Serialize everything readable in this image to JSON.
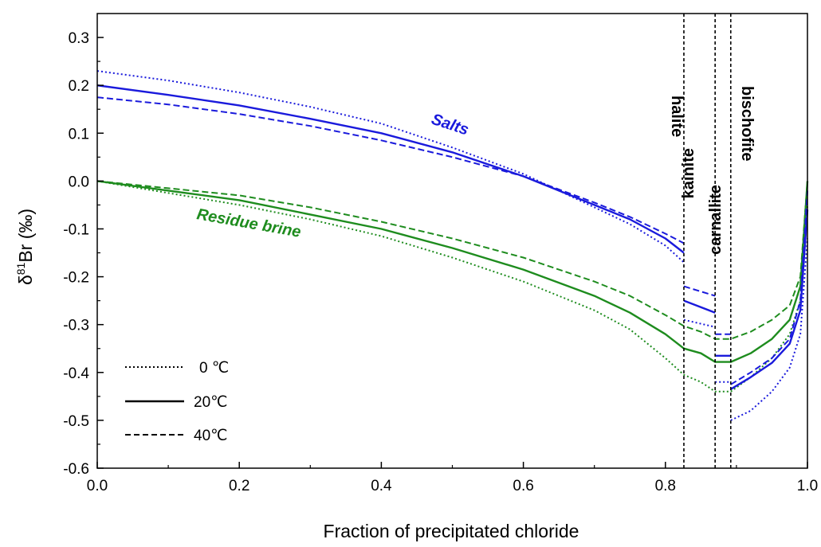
{
  "chart_data": {
    "type": "line",
    "xlabel": "Fraction of precipitated chloride",
    "ylabel": {
      "prefix": "δ",
      "superscript": "81",
      "main": "Br (‰)"
    },
    "xlim": [
      0,
      1.0
    ],
    "ylim": [
      -0.6,
      0.35
    ],
    "x_ticks": [
      0.0,
      0.2,
      0.4,
      0.6,
      0.8,
      1.0
    ],
    "x_tick_labels": [
      "0.0",
      "0.2",
      "0.4",
      "0.6",
      "0.8",
      "1.0"
    ],
    "y_ticks": [
      0.3,
      0.2,
      0.1,
      0.0,
      -0.1,
      -0.2,
      -0.3,
      -0.4,
      -0.5,
      -0.6
    ],
    "y_tick_labels": [
      "0.3",
      "0.2",
      "0.1",
      "0.0",
      "-0.1",
      "-0.2",
      "-0.3",
      "-0.4",
      "-0.5",
      "-0.6"
    ],
    "grid": false,
    "colors": {
      "salts": "#1a1adc",
      "brine": "#1e8c1e"
    },
    "annotations": {
      "salts": "Salts",
      "brine": "Residue brine"
    },
    "phase_boundaries": [
      {
        "x": 0.826,
        "label": "halite"
      },
      {
        "x": 0.87,
        "label": "kainite"
      },
      {
        "x": 0.892,
        "label": "carnallite"
      },
      {
        "x": 0.892,
        "label": "bischofite"
      }
    ],
    "legend": {
      "position": "bottom-left",
      "entries": [
        {
          "label": "0 ℃",
          "style": "dotted"
        },
        {
          "label": "20℃",
          "style": "solid"
        },
        {
          "label": "40℃",
          "style": "dashed"
        }
      ]
    },
    "series": [
      {
        "group": "brine",
        "temp": "0",
        "style": "dotted",
        "segments": [
          [
            [
              0,
              0
            ],
            [
              0.1,
              -0.025
            ],
            [
              0.2,
              -0.05
            ],
            [
              0.3,
              -0.08
            ],
            [
              0.4,
              -0.115
            ],
            [
              0.5,
              -0.16
            ],
            [
              0.6,
              -0.21
            ],
            [
              0.7,
              -0.27
            ],
            [
              0.75,
              -0.31
            ],
            [
              0.8,
              -0.37
            ],
            [
              0.826,
              -0.405
            ],
            [
              0.85,
              -0.42
            ],
            [
              0.87,
              -0.44
            ],
            [
              0.892,
              -0.44
            ],
            [
              0.92,
              -0.41
            ],
            [
              0.95,
              -0.37
            ],
            [
              0.975,
              -0.32
            ],
            [
              0.99,
              -0.25
            ],
            [
              1.0,
              -0.05
            ]
          ]
        ]
      },
      {
        "group": "brine",
        "temp": "20",
        "style": "solid",
        "segments": [
          [
            [
              0,
              0
            ],
            [
              0.1,
              -0.02
            ],
            [
              0.2,
              -0.04
            ],
            [
              0.3,
              -0.07
            ],
            [
              0.4,
              -0.1
            ],
            [
              0.5,
              -0.14
            ],
            [
              0.6,
              -0.185
            ],
            [
              0.7,
              -0.24
            ],
            [
              0.75,
              -0.275
            ],
            [
              0.8,
              -0.32
            ],
            [
              0.826,
              -0.35
            ],
            [
              0.85,
              -0.36
            ],
            [
              0.87,
              -0.378
            ],
            [
              0.892,
              -0.378
            ],
            [
              0.92,
              -0.36
            ],
            [
              0.95,
              -0.33
            ],
            [
              0.975,
              -0.29
            ],
            [
              0.99,
              -0.22
            ],
            [
              1.0,
              0.0
            ]
          ]
        ]
      },
      {
        "group": "brine",
        "temp": "40",
        "style": "dashed",
        "segments": [
          [
            [
              0,
              0
            ],
            [
              0.1,
              -0.015
            ],
            [
              0.2,
              -0.03
            ],
            [
              0.3,
              -0.055
            ],
            [
              0.4,
              -0.085
            ],
            [
              0.5,
              -0.12
            ],
            [
              0.6,
              -0.16
            ],
            [
              0.7,
              -0.21
            ],
            [
              0.75,
              -0.24
            ],
            [
              0.8,
              -0.28
            ],
            [
              0.826,
              -0.303
            ],
            [
              0.85,
              -0.315
            ],
            [
              0.87,
              -0.33
            ],
            [
              0.892,
              -0.33
            ],
            [
              0.92,
              -0.315
            ],
            [
              0.95,
              -0.29
            ],
            [
              0.975,
              -0.26
            ],
            [
              0.99,
              -0.2
            ],
            [
              1.0,
              0.0
            ]
          ]
        ]
      },
      {
        "group": "salts",
        "temp": "0",
        "style": "dotted",
        "segments": [
          [
            [
              0,
              0.23
            ],
            [
              0.1,
              0.21
            ],
            [
              0.2,
              0.185
            ],
            [
              0.3,
              0.155
            ],
            [
              0.4,
              0.12
            ],
            [
              0.5,
              0.07
            ],
            [
              0.6,
              0.015
            ],
            [
              0.7,
              -0.055
            ],
            [
              0.75,
              -0.09
            ],
            [
              0.8,
              -0.135
            ],
            [
              0.826,
              -0.17
            ]
          ],
          [
            [
              0.826,
              -0.29
            ],
            [
              0.87,
              -0.305
            ]
          ],
          [
            [
              0.892,
              -0.5
            ],
            [
              0.92,
              -0.48
            ],
            [
              0.95,
              -0.44
            ],
            [
              0.975,
              -0.39
            ],
            [
              0.99,
              -0.32
            ],
            [
              1.0,
              -0.12
            ]
          ]
        ]
      },
      {
        "group": "salts",
        "temp": "20",
        "style": "solid",
        "segments": [
          [
            [
              0,
              0.2
            ],
            [
              0.1,
              0.18
            ],
            [
              0.2,
              0.158
            ],
            [
              0.3,
              0.13
            ],
            [
              0.4,
              0.1
            ],
            [
              0.5,
              0.06
            ],
            [
              0.6,
              0.01
            ],
            [
              0.7,
              -0.05
            ],
            [
              0.75,
              -0.08
            ],
            [
              0.8,
              -0.12
            ],
            [
              0.826,
              -0.15
            ]
          ],
          [
            [
              0.826,
              -0.25
            ],
            [
              0.87,
              -0.275
            ]
          ],
          [
            [
              0.892,
              -0.435
            ],
            [
              0.92,
              -0.41
            ],
            [
              0.95,
              -0.38
            ],
            [
              0.975,
              -0.34
            ],
            [
              0.99,
              -0.27
            ],
            [
              1.0,
              -0.06
            ]
          ]
        ]
      },
      {
        "group": "salts",
        "temp": "40",
        "style": "dashed",
        "segments": [
          [
            [
              0,
              0.175
            ],
            [
              0.1,
              0.16
            ],
            [
              0.2,
              0.14
            ],
            [
              0.3,
              0.115
            ],
            [
              0.4,
              0.085
            ],
            [
              0.5,
              0.05
            ],
            [
              0.6,
              0.01
            ],
            [
              0.7,
              -0.045
            ],
            [
              0.75,
              -0.075
            ],
            [
              0.8,
              -0.11
            ],
            [
              0.826,
              -0.13
            ]
          ],
          [
            [
              0.826,
              -0.22
            ],
            [
              0.87,
              -0.24
            ]
          ],
          [
            [
              0.892,
              -0.425
            ],
            [
              0.92,
              -0.4
            ],
            [
              0.95,
              -0.37
            ],
            [
              0.975,
              -0.33
            ],
            [
              0.99,
              -0.25
            ],
            [
              1.0,
              -0.02
            ]
          ]
        ]
      },
      {
        "group": "salts",
        "temp": "0",
        "style": "dotted",
        "segments": [
          [
            [
              0.87,
              -0.42
            ],
            [
              0.892,
              -0.42
            ]
          ]
        ]
      },
      {
        "group": "salts",
        "temp": "20",
        "style": "solid",
        "segments": [
          [
            [
              0.87,
              -0.365
            ],
            [
              0.892,
              -0.365
            ]
          ]
        ]
      },
      {
        "group": "salts",
        "temp": "40",
        "style": "dashed",
        "segments": [
          [
            [
              0.87,
              -0.32
            ],
            [
              0.892,
              -0.32
            ]
          ]
        ]
      }
    ]
  }
}
